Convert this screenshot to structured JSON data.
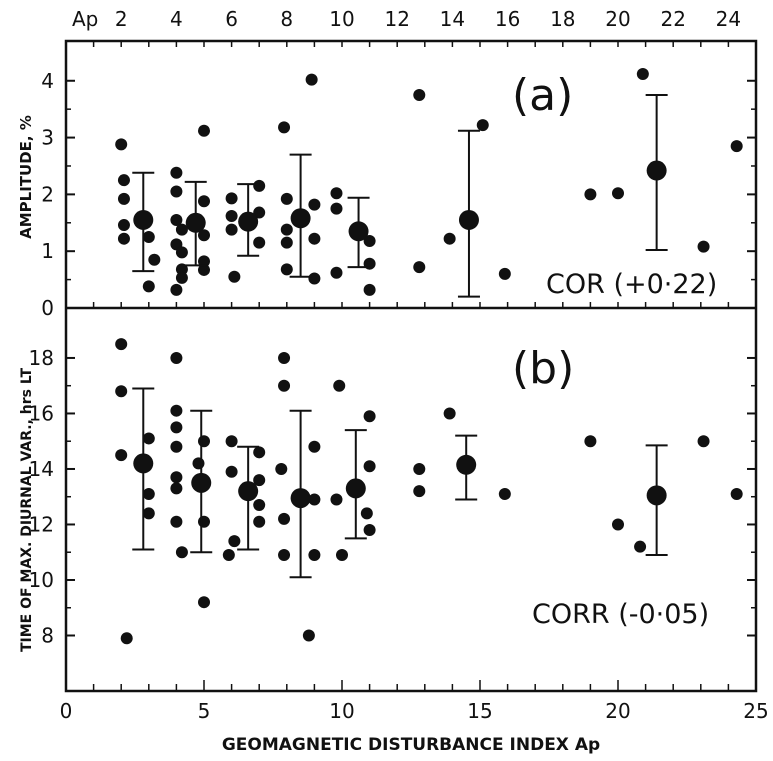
{
  "chart_data": [
    {
      "type": "scatter",
      "panel_label": "(a)",
      "annotation": "COR (+0·22)",
      "ylabel": "AMPLITUDE, %",
      "xlabel": "",
      "ylim": [
        0,
        4.7
      ],
      "yticks": [
        0,
        1,
        2,
        3,
        4
      ],
      "xlim": [
        0,
        25
      ],
      "top_axis_label": "Ap",
      "top_ticks": [
        2,
        4,
        6,
        8,
        10,
        12,
        14,
        16,
        18,
        20,
        22,
        24
      ],
      "points": [
        [
          2.0,
          2.88
        ],
        [
          2.1,
          2.25
        ],
        [
          2.1,
          1.92
        ],
        [
          2.1,
          1.46
        ],
        [
          2.1,
          1.22
        ],
        [
          3.0,
          1.25
        ],
        [
          3.0,
          0.38
        ],
        [
          3.2,
          0.85
        ],
        [
          4.0,
          2.38
        ],
        [
          4.0,
          2.05
        ],
        [
          4.0,
          1.55
        ],
        [
          4.0,
          1.12
        ],
        [
          4.0,
          0.32
        ],
        [
          4.2,
          1.38
        ],
        [
          4.2,
          0.68
        ],
        [
          4.2,
          0.98
        ],
        [
          4.2,
          0.53
        ],
        [
          5.0,
          3.12
        ],
        [
          5.0,
          1.88
        ],
        [
          5.0,
          1.28
        ],
        [
          5.0,
          0.82
        ],
        [
          5.0,
          0.67
        ],
        [
          6.0,
          1.93
        ],
        [
          6.0,
          1.62
        ],
        [
          6.0,
          1.38
        ],
        [
          6.1,
          0.55
        ],
        [
          7.0,
          2.15
        ],
        [
          7.0,
          1.68
        ],
        [
          7.0,
          1.15
        ],
        [
          7.9,
          3.18
        ],
        [
          8.0,
          1.92
        ],
        [
          8.0,
          1.38
        ],
        [
          8.0,
          1.15
        ],
        [
          8.0,
          0.68
        ],
        [
          8.9,
          4.02
        ],
        [
          9.0,
          1.82
        ],
        [
          9.0,
          1.22
        ],
        [
          9.0,
          0.52
        ],
        [
          9.8,
          2.02
        ],
        [
          9.8,
          1.75
        ],
        [
          9.8,
          0.62
        ],
        [
          11.0,
          1.18
        ],
        [
          11.0,
          0.78
        ],
        [
          11.0,
          0.32
        ],
        [
          12.8,
          3.75
        ],
        [
          12.8,
          0.72
        ],
        [
          13.9,
          1.22
        ],
        [
          15.1,
          3.22
        ],
        [
          15.9,
          0.6
        ],
        [
          19.0,
          2.0
        ],
        [
          20.0,
          2.02
        ],
        [
          20.9,
          4.12
        ],
        [
          23.1,
          1.08
        ],
        [
          24.3,
          2.85
        ]
      ],
      "means": [
        {
          "x": 2.8,
          "y": 1.55,
          "ymin": 0.65,
          "ymax": 2.38
        },
        {
          "x": 4.7,
          "y": 1.5,
          "ymin": 0.75,
          "ymax": 2.22
        },
        {
          "x": 6.6,
          "y": 1.52,
          "ymin": 0.92,
          "ymax": 2.18
        },
        {
          "x": 8.5,
          "y": 1.58,
          "ymin": 0.55,
          "ymax": 2.7
        },
        {
          "x": 10.6,
          "y": 1.35,
          "ymin": 0.72,
          "ymax": 1.94
        },
        {
          "x": 14.6,
          "y": 1.55,
          "ymin": 0.2,
          "ymax": 3.12
        },
        {
          "x": 21.4,
          "y": 2.42,
          "ymin": 1.02,
          "ymax": 3.75
        }
      ]
    },
    {
      "type": "scatter",
      "panel_label": "(b)",
      "annotation": "CORR (-0·05)",
      "ylabel": "TIME OF MAX. DIURNAL VAR., hrs LT",
      "xlabel": "GEOMAGNETIC DISTURBANCE INDEX Ap",
      "ylim": [
        6.0,
        19.8
      ],
      "yticks": [
        8,
        10,
        12,
        14,
        16,
        18
      ],
      "xlim": [
        0,
        25
      ],
      "xticks": [
        0,
        5,
        10,
        15,
        20,
        25
      ],
      "points": [
        [
          2.0,
          18.5
        ],
        [
          2.0,
          16.8
        ],
        [
          2.0,
          14.5
        ],
        [
          2.2,
          7.9
        ],
        [
          3.0,
          15.1
        ],
        [
          3.0,
          13.1
        ],
        [
          3.0,
          12.4
        ],
        [
          4.0,
          18.0
        ],
        [
          4.0,
          16.1
        ],
        [
          4.0,
          15.5
        ],
        [
          4.0,
          14.8
        ],
        [
          4.0,
          13.7
        ],
        [
          4.0,
          13.3
        ],
        [
          4.0,
          12.1
        ],
        [
          4.2,
          11.0
        ],
        [
          4.8,
          14.2
        ],
        [
          5.0,
          15.0
        ],
        [
          5.0,
          12.1
        ],
        [
          5.0,
          9.2
        ],
        [
          6.0,
          15.0
        ],
        [
          6.0,
          13.9
        ],
        [
          6.1,
          11.4
        ],
        [
          5.9,
          10.9
        ],
        [
          7.0,
          14.6
        ],
        [
          7.0,
          13.6
        ],
        [
          7.0,
          12.7
        ],
        [
          7.0,
          12.1
        ],
        [
          7.9,
          18.0
        ],
        [
          7.9,
          17.0
        ],
        [
          7.8,
          14.0
        ],
        [
          7.9,
          12.2
        ],
        [
          7.9,
          10.9
        ],
        [
          9.0,
          14.8
        ],
        [
          9.0,
          12.9
        ],
        [
          9.0,
          10.9
        ],
        [
          8.8,
          8.0
        ],
        [
          9.9,
          17.0
        ],
        [
          9.8,
          12.9
        ],
        [
          10.0,
          10.9
        ],
        [
          11.0,
          15.9
        ],
        [
          11.0,
          14.1
        ],
        [
          10.9,
          12.4
        ],
        [
          11.0,
          11.8
        ],
        [
          12.8,
          14.0
        ],
        [
          12.8,
          13.2
        ],
        [
          13.9,
          16.0
        ],
        [
          15.9,
          13.1
        ],
        [
          19.0,
          15.0
        ],
        [
          20.0,
          12.0
        ],
        [
          20.8,
          11.2
        ],
        [
          23.1,
          15.0
        ],
        [
          24.3,
          13.1
        ]
      ],
      "means": [
        {
          "x": 2.8,
          "y": 14.2,
          "ymin": 11.1,
          "ymax": 16.9
        },
        {
          "x": 4.9,
          "y": 13.5,
          "ymin": 11.0,
          "ymax": 16.1
        },
        {
          "x": 6.6,
          "y": 13.2,
          "ymin": 11.1,
          "ymax": 14.8
        },
        {
          "x": 8.5,
          "y": 12.95,
          "ymin": 10.1,
          "ymax": 16.1
        },
        {
          "x": 10.5,
          "y": 13.3,
          "ymin": 11.5,
          "ymax": 15.4
        },
        {
          "x": 14.5,
          "y": 14.15,
          "ymin": 12.9,
          "ymax": 15.2
        },
        {
          "x": 21.4,
          "y": 13.05,
          "ymin": 10.9,
          "ymax": 14.85
        }
      ]
    }
  ]
}
